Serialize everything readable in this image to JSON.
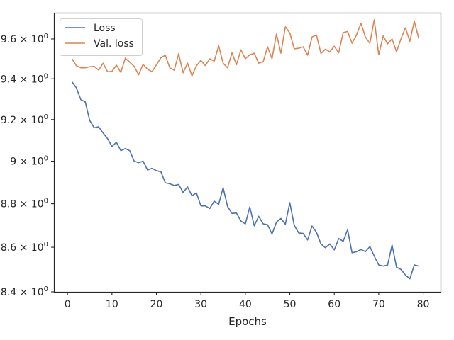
{
  "chart_data": {
    "type": "line",
    "xlabel": "Epochs",
    "ylabel": "",
    "xlim": [
      -2.9,
      83.9
    ],
    "ylim": [
      8.4,
      9.73
    ],
    "yscale": "log",
    "grid": false,
    "legend_position": "top-left",
    "x_ticks": [
      0,
      10,
      20,
      30,
      40,
      50,
      60,
      70,
      80
    ],
    "y_ticks": [
      {
        "value": 8.4,
        "mantissa": "8.4"
      },
      {
        "value": 8.6,
        "mantissa": "8.6"
      },
      {
        "value": 8.8,
        "mantissa": "8.8"
      },
      {
        "value": 9.0,
        "mantissa": "9"
      },
      {
        "value": 9.2,
        "mantissa": "9.2"
      },
      {
        "value": 9.4,
        "mantissa": "9.4"
      },
      {
        "value": 9.6,
        "mantissa": "9.6"
      }
    ],
    "y_tick_suffix": {
      "times": "×",
      "base": "10",
      "exponent": "0"
    },
    "series": [
      {
        "name": "Loss",
        "color": "#4c72b0",
        "x": [
          1,
          2,
          3,
          4,
          5,
          6,
          7,
          8,
          9,
          10,
          11,
          12,
          13,
          14,
          15,
          16,
          17,
          18,
          19,
          20,
          21,
          22,
          23,
          24,
          25,
          26,
          27,
          28,
          29,
          30,
          31,
          32,
          33,
          34,
          35,
          36,
          37,
          38,
          39,
          40,
          41,
          42,
          43,
          44,
          45,
          46,
          47,
          48,
          49,
          50,
          51,
          52,
          53,
          54,
          55,
          56,
          57,
          58,
          59,
          60,
          61,
          62,
          63,
          64,
          65,
          66,
          67,
          68,
          69,
          70,
          71,
          72,
          73,
          74,
          75,
          76,
          77,
          78,
          79
        ],
        "values": [
          9.385,
          9.355,
          9.297,
          9.286,
          9.195,
          9.16,
          9.165,
          9.135,
          9.108,
          9.07,
          9.09,
          9.05,
          9.06,
          9.05,
          9.0,
          8.993,
          9.0,
          8.958,
          8.966,
          8.955,
          8.95,
          8.898,
          8.893,
          8.885,
          8.89,
          8.853,
          8.878,
          8.837,
          8.85,
          8.79,
          8.79,
          8.778,
          8.812,
          8.797,
          8.875,
          8.787,
          8.755,
          8.757,
          8.72,
          8.707,
          8.785,
          8.698,
          8.742,
          8.707,
          8.703,
          8.66,
          8.715,
          8.732,
          8.705,
          8.805,
          8.7,
          8.665,
          8.663,
          8.633,
          8.697,
          8.668,
          8.615,
          8.598,
          8.615,
          8.588,
          8.64,
          8.627,
          8.68,
          8.575,
          8.58,
          8.59,
          8.58,
          8.603,
          8.56,
          8.52,
          8.515,
          8.52,
          8.61,
          8.51,
          8.5,
          8.475,
          8.458,
          8.52,
          8.515
        ]
      },
      {
        "name": "Val. loss",
        "color": "#dd8452",
        "x": [
          1,
          2,
          3,
          4,
          5,
          6,
          7,
          8,
          9,
          10,
          11,
          12,
          13,
          14,
          15,
          16,
          17,
          18,
          19,
          20,
          21,
          22,
          23,
          24,
          25,
          26,
          27,
          28,
          29,
          30,
          31,
          32,
          33,
          34,
          35,
          36,
          37,
          38,
          39,
          40,
          41,
          42,
          43,
          44,
          45,
          46,
          47,
          48,
          49,
          50,
          51,
          52,
          53,
          54,
          55,
          56,
          57,
          58,
          59,
          60,
          61,
          62,
          63,
          64,
          65,
          66,
          67,
          68,
          69,
          70,
          71,
          72,
          73,
          74,
          75,
          76,
          77,
          78,
          79
        ],
        "values": [
          9.5,
          9.465,
          9.455,
          9.455,
          9.46,
          9.462,
          9.443,
          9.478,
          9.435,
          9.437,
          9.468,
          9.432,
          9.503,
          9.483,
          9.462,
          9.42,
          9.472,
          9.448,
          9.435,
          9.47,
          9.505,
          9.518,
          9.455,
          9.443,
          9.525,
          9.43,
          9.478,
          9.415,
          9.465,
          9.492,
          9.466,
          9.5,
          9.488,
          9.565,
          9.478,
          9.455,
          9.53,
          9.47,
          9.545,
          9.5,
          9.52,
          9.528,
          9.478,
          9.485,
          9.56,
          9.5,
          9.625,
          9.528,
          9.662,
          9.63,
          9.55,
          9.553,
          9.56,
          9.518,
          9.61,
          9.62,
          9.527,
          9.548,
          9.535,
          9.563,
          9.53,
          9.632,
          9.638,
          9.578,
          9.62,
          9.68,
          9.61,
          9.578,
          9.698,
          9.52,
          9.615,
          9.575,
          9.6,
          9.535,
          9.6,
          9.657,
          9.588,
          9.69,
          9.603
        ]
      }
    ]
  }
}
